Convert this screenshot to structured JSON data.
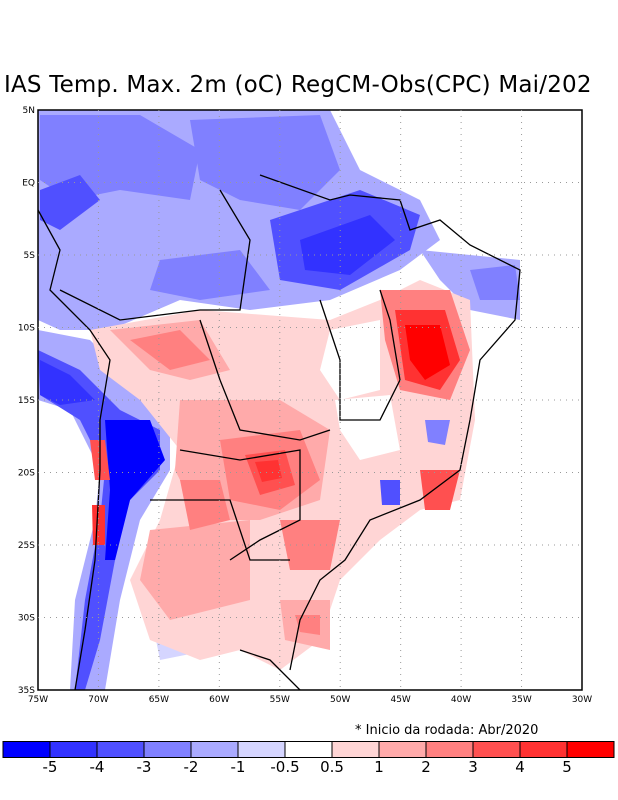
{
  "title": "IAS Temp. Max. 2m (oC) RegCM-Obs(CPC) Mai/202",
  "note": "* Inicio da rodada: Abr/2020",
  "map": {
    "lon_range": [
      -75,
      -30
    ],
    "lat_range": [
      -35,
      5
    ],
    "lon_ticks": [
      "75W",
      "70W",
      "65W",
      "60W",
      "55W",
      "50W",
      "45W",
      "40W",
      "35W",
      "30W"
    ],
    "lat_ticks": [
      "5N",
      "EQ",
      "5S",
      "10S",
      "15S",
      "20S",
      "25S",
      "30S",
      "35S"
    ]
  },
  "colorbar": {
    "colors": [
      "#0000ff",
      "#3232ff",
      "#5050ff",
      "#8080ff",
      "#aaaaff",
      "#d5d5ff",
      "#ffffff",
      "#ffd5d5",
      "#ffaaaa",
      "#ff8080",
      "#ff5050",
      "#ff3232",
      "#ff0000"
    ],
    "labels": [
      "-5",
      "-4",
      "-3",
      "-2",
      "-1",
      "-0.5",
      "0.5",
      "1",
      "2",
      "3",
      "4",
      "5"
    ]
  }
}
